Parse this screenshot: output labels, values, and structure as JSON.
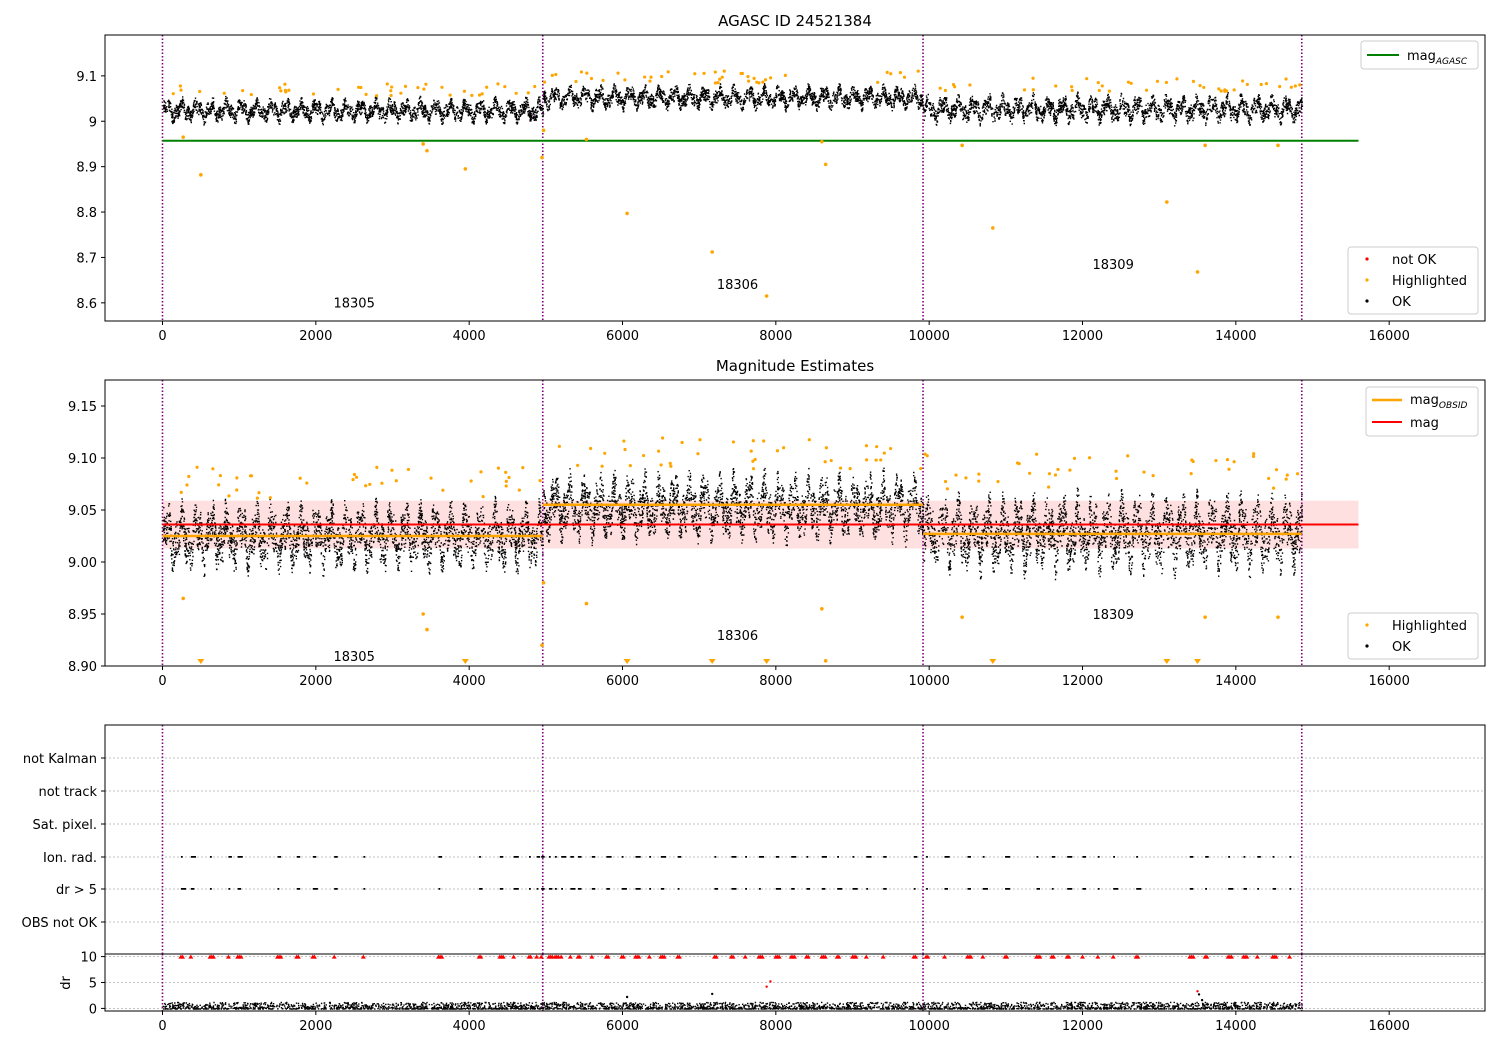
{
  "chart_data": [
    {
      "type": "scatter",
      "title": "AGASC ID 24521384",
      "xlim": [
        -750,
        17250
      ],
      "ylim": [
        8.56,
        9.19
      ],
      "x_ticks": [
        0,
        2000,
        4000,
        6000,
        8000,
        10000,
        12000,
        14000,
        16000
      ],
      "y_ticks": [
        8.6,
        8.7,
        8.8,
        8.9,
        9.0,
        9.1
      ],
      "obs_boundaries": [
        0,
        4960,
        9920,
        14860
      ],
      "obs_labels": [
        {
          "text": "18305",
          "x": 2500,
          "y": 8.59
        },
        {
          "text": "18306",
          "x": 7500,
          "y": 8.63
        },
        {
          "text": "18309",
          "x": 12400,
          "y": 8.675
        }
      ],
      "reference_line": {
        "name": "mag_AGASC",
        "value": 8.957,
        "x_range": [
          0,
          15600
        ],
        "color": "#008000"
      },
      "bands": [
        {
          "x0": 0,
          "x1": 4960,
          "mean": 9.025,
          "amp": 0.012
        },
        {
          "x0": 4960,
          "x1": 9920,
          "mean": 9.053,
          "amp": 0.012
        },
        {
          "x0": 9920,
          "x1": 14860,
          "mean": 9.028,
          "amp": 0.014
        }
      ],
      "highlighted_points": [
        [
          270,
          8.965
        ],
        [
          500,
          8.882
        ],
        [
          3400,
          8.95
        ],
        [
          3450,
          8.935
        ],
        [
          3950,
          8.895
        ],
        [
          4950,
          8.92
        ],
        [
          4970,
          8.98
        ],
        [
          5530,
          8.96
        ],
        [
          6060,
          8.797
        ],
        [
          7170,
          8.712
        ],
        [
          7880,
          8.615
        ],
        [
          8600,
          8.955
        ],
        [
          8650,
          8.905
        ],
        [
          10430,
          8.947
        ],
        [
          10830,
          8.765
        ],
        [
          13100,
          8.822
        ],
        [
          13500,
          8.668
        ],
        [
          13600,
          8.947
        ],
        [
          14550,
          8.947
        ]
      ],
      "legend_upper": {
        "placement": "upper-right",
        "entries": [
          {
            "label": "mag",
            "sub": "AGASC",
            "color": "#008000"
          }
        ]
      },
      "legend_lower": {
        "placement": "lower-right",
        "entries": [
          {
            "label": "not OK",
            "color": "#ff0000"
          },
          {
            "label": "Highlighted",
            "color": "#ffa500"
          },
          {
            "label": "OK",
            "color": "#000000"
          }
        ]
      }
    },
    {
      "type": "scatter",
      "title": "Magnitude Estimates",
      "xlim": [
        -750,
        17250
      ],
      "ylim": [
        8.9,
        9.175
      ],
      "x_ticks": [
        0,
        2000,
        4000,
        6000,
        8000,
        10000,
        12000,
        14000,
        16000
      ],
      "y_ticks": [
        8.9,
        8.95,
        9.0,
        9.05,
        9.1,
        9.15
      ],
      "y_tick_labels": [
        "8.90",
        "8.95",
        "9.00",
        "9.05",
        "9.10",
        "9.15"
      ],
      "obs_boundaries": [
        0,
        4960,
        9920,
        14860
      ],
      "obs_labels": [
        {
          "text": "18305",
          "x": 2500,
          "y": 8.905
        },
        {
          "text": "18306",
          "x": 7500,
          "y": 8.925
        },
        {
          "text": "18309",
          "x": 12400,
          "y": 8.945
        }
      ],
      "mag": {
        "name": "mag",
        "value": 9.036,
        "band": [
          9.013,
          9.059
        ],
        "x_range": [
          0,
          15600
        ],
        "color": "#ff0000"
      },
      "mag_obsid": [
        {
          "x0": 0,
          "x1": 4960,
          "value": 9.025
        },
        {
          "x0": 4960,
          "x1": 9920,
          "value": 9.055
        },
        {
          "x0": 9920,
          "x1": 14860,
          "value": 9.027
        }
      ],
      "bands": [
        {
          "x0": 0,
          "x1": 4960,
          "mean": 9.025,
          "amp": 0.014
        },
        {
          "x0": 4960,
          "x1": 9920,
          "mean": 9.053,
          "amp": 0.014
        },
        {
          "x0": 9920,
          "x1": 14860,
          "mean": 9.028,
          "amp": 0.016
        }
      ],
      "highlighted_points": [
        [
          270,
          8.965
        ],
        [
          3400,
          8.95
        ],
        [
          3450,
          8.935
        ],
        [
          4950,
          8.92
        ],
        [
          4970,
          8.98
        ],
        [
          5530,
          8.96
        ],
        [
          8600,
          8.955
        ],
        [
          8650,
          8.905
        ],
        [
          10430,
          8.947
        ],
        [
          13600,
          8.947
        ],
        [
          14550,
          8.947
        ]
      ],
      "clipped_markers_x": [
        500,
        3950,
        6060,
        7170,
        7880,
        10830,
        13100,
        13500
      ],
      "legend_upper": {
        "placement": "upper-right",
        "entries": [
          {
            "label": "mag",
            "sub": "OBSID",
            "color": "#ffa500"
          },
          {
            "label": "mag",
            "color": "#ff0000"
          }
        ]
      },
      "legend_lower": {
        "placement": "lower-right",
        "entries": [
          {
            "label": "Highlighted",
            "color": "#ffa500"
          },
          {
            "label": "OK",
            "color": "#000000"
          }
        ]
      }
    },
    {
      "type": "scatter",
      "xlim": [
        -750,
        17250
      ],
      "flag_categories": [
        "not Kalman",
        "not track",
        "Sat. pixel.",
        "Ion. rad.",
        "dr > 5",
        "OBS not OK"
      ],
      "flag_x": [
        240,
        370,
        620,
        860,
        980,
        1500,
        1750,
        1960,
        2240,
        2620,
        3600,
        4130,
        4400,
        4580,
        4780,
        4880,
        4940,
        5040,
        5120,
        5200,
        5320,
        5420,
        5600,
        5790,
        5990,
        6170,
        6350,
        6500,
        6720,
        7200,
        7420,
        7600,
        7780,
        8000,
        8200,
        8400,
        8600,
        8800,
        9000,
        9180,
        9400,
        9800,
        9960,
        10200,
        10500,
        10700,
        10990,
        11400,
        11600,
        11800,
        12000,
        12200,
        12400,
        12700,
        13400,
        13600,
        13900,
        14100,
        14280,
        14480,
        14700
      ],
      "flag_rows": [
        "Ion. rad.",
        "dr > 5"
      ],
      "x_ticks": [
        0,
        2000,
        4000,
        6000,
        8000,
        10000,
        12000,
        14000,
        16000
      ]
    },
    {
      "type": "scatter",
      "ylabel": "dr",
      "xlim": [
        -750,
        17250
      ],
      "ylim": [
        -0.5,
        10.5
      ],
      "y_ticks": [
        0,
        5,
        10
      ],
      "x_ticks": [
        0,
        2000,
        4000,
        6000,
        8000,
        10000,
        12000,
        14000,
        16000
      ],
      "obs_boundaries": [
        0,
        4960,
        9920,
        14860
      ],
      "clipped_color": "#ff0000",
      "outliers": [
        [
          6060,
          2.2
        ],
        [
          7170,
          2.8
        ],
        [
          7880,
          4.2
        ],
        [
          7930,
          5.2
        ],
        [
          13500,
          3.3
        ],
        [
          13520,
          2.7
        ],
        [
          13560,
          1.6
        ]
      ]
    }
  ]
}
